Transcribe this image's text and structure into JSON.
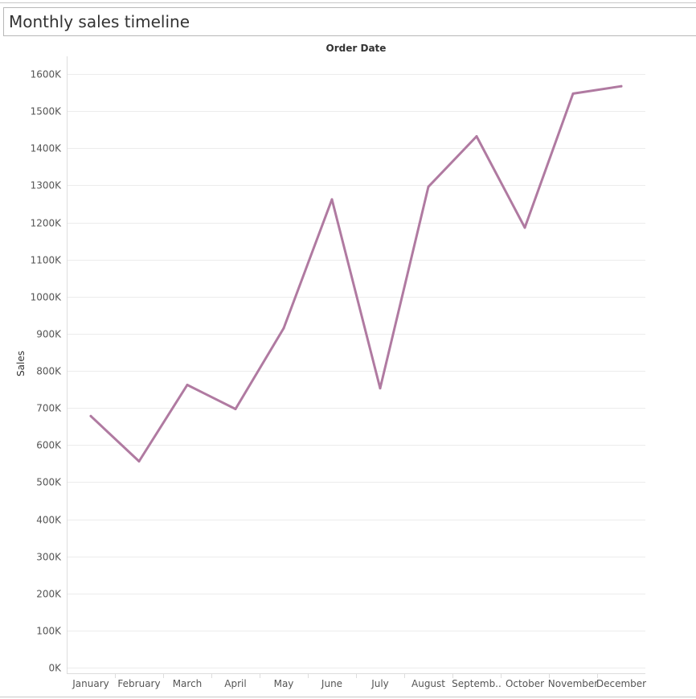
{
  "header": {
    "title": "Monthly sales timeline"
  },
  "chart_data": {
    "type": "line",
    "column_header": "Order Date",
    "ylabel": "Sales",
    "xlabel": "",
    "categories": [
      "January",
      "February",
      "March",
      "April",
      "May",
      "June",
      "July",
      "August",
      "Septemb..",
      "October",
      "November",
      "December"
    ],
    "series": [
      {
        "values": [
          678000,
          556000,
          762000,
          697000,
          915000,
          1262000,
          753000,
          1296000,
          1432000,
          1186000,
          1547000,
          1567000
        ]
      }
    ],
    "ylim": [
      0,
      1600000
    ],
    "yticks": [
      0,
      100000,
      200000,
      300000,
      400000,
      500000,
      600000,
      700000,
      800000,
      900000,
      1000000,
      1100000,
      1200000,
      1300000,
      1400000,
      1500000,
      1600000
    ],
    "ytick_labels": [
      "0K",
      "100K",
      "200K",
      "300K",
      "400K",
      "500K",
      "600K",
      "700K",
      "800K",
      "900K",
      "1000K",
      "1100K",
      "1200K",
      "1300K",
      "1400K",
      "1500K",
      "1600K"
    ],
    "line_color": "#b07aa1",
    "grid": true
  }
}
